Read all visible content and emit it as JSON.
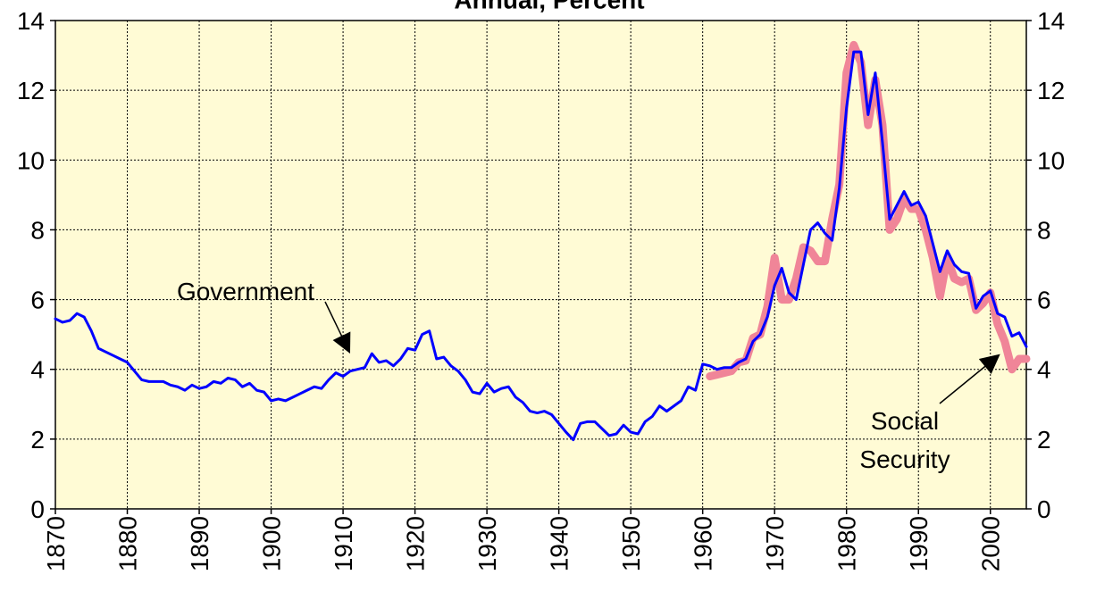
{
  "chart_data": {
    "type": "line",
    "title": "Annual, Percent",
    "xlim": [
      1870,
      2005
    ],
    "xticks": [
      1870,
      1880,
      1890,
      1900,
      1910,
      1920,
      1930,
      1940,
      1950,
      1960,
      1970,
      1980,
      1990,
      2000
    ],
    "ylim": [
      0,
      14
    ],
    "yticks": [
      0,
      2,
      4,
      6,
      8,
      10,
      12,
      14
    ],
    "y2lim": [
      0,
      14
    ],
    "y2ticks": [
      0,
      2,
      4,
      6,
      8,
      10,
      12,
      14
    ],
    "grid": true,
    "background": "#fffbd5",
    "annotations": [
      {
        "text": [
          "Government"
        ]
      },
      {
        "text": [
          "Social",
          "Security"
        ]
      }
    ],
    "series": [
      {
        "name": "Government",
        "color": "#0000ff",
        "x": [
          1870,
          1871,
          1872,
          1873,
          1874,
          1875,
          1876,
          1877,
          1878,
          1879,
          1880,
          1881,
          1882,
          1883,
          1884,
          1885,
          1886,
          1887,
          1888,
          1889,
          1890,
          1891,
          1892,
          1893,
          1894,
          1895,
          1896,
          1897,
          1898,
          1899,
          1900,
          1901,
          1902,
          1903,
          1904,
          1905,
          1906,
          1907,
          1908,
          1909,
          1910,
          1911,
          1912,
          1913,
          1914,
          1915,
          1916,
          1917,
          1918,
          1919,
          1920,
          1921,
          1922,
          1923,
          1924,
          1925,
          1926,
          1927,
          1928,
          1929,
          1930,
          1931,
          1932,
          1933,
          1934,
          1935,
          1936,
          1937,
          1938,
          1939,
          1940,
          1941,
          1942,
          1943,
          1944,
          1945,
          1946,
          1947,
          1948,
          1949,
          1950,
          1951,
          1952,
          1953,
          1954,
          1955,
          1956,
          1957,
          1958,
          1959,
          1960,
          1961,
          1962,
          1963,
          1964,
          1965,
          1966,
          1967,
          1968,
          1969,
          1970,
          1971,
          1972,
          1973,
          1974,
          1975,
          1976,
          1977,
          1978,
          1979,
          1980,
          1981,
          1982,
          1983,
          1984,
          1985,
          1986,
          1987,
          1988,
          1989,
          1990,
          1991,
          1992,
          1993,
          1994,
          1995,
          1996,
          1997,
          1998,
          1999,
          2000,
          2001,
          2002,
          2003,
          2004,
          2005
        ],
        "values": [
          5.45,
          5.35,
          5.4,
          5.6,
          5.5,
          5.1,
          4.6,
          4.5,
          4.4,
          4.3,
          4.2,
          3.95,
          3.7,
          3.65,
          3.65,
          3.65,
          3.55,
          3.5,
          3.4,
          3.55,
          3.45,
          3.5,
          3.65,
          3.6,
          3.75,
          3.7,
          3.5,
          3.6,
          3.4,
          3.35,
          3.1,
          3.15,
          3.1,
          3.2,
          3.3,
          3.4,
          3.5,
          3.45,
          3.7,
          3.9,
          3.8,
          3.95,
          4.0,
          4.05,
          4.45,
          4.2,
          4.25,
          4.1,
          4.3,
          4.6,
          4.55,
          5.0,
          5.1,
          4.3,
          4.35,
          4.1,
          3.95,
          3.7,
          3.35,
          3.3,
          3.6,
          3.35,
          3.45,
          3.5,
          3.2,
          3.05,
          2.8,
          2.75,
          2.8,
          2.7,
          2.45,
          2.2,
          1.98,
          2.45,
          2.5,
          2.5,
          2.3,
          2.1,
          2.15,
          2.4,
          2.2,
          2.15,
          2.5,
          2.65,
          2.95,
          2.8,
          2.95,
          3.1,
          3.5,
          3.4,
          4.15,
          4.1,
          4.0,
          4.05,
          4.05,
          4.2,
          4.3,
          4.8,
          5.0,
          5.5,
          6.4,
          6.9,
          6.2,
          6.0,
          7.0,
          8.0,
          8.2,
          7.9,
          7.7,
          9.2,
          11.5,
          13.1,
          13.1,
          11.3,
          12.5,
          10.5,
          8.3,
          8.7,
          9.1,
          8.7,
          8.8,
          8.4,
          7.6,
          6.8,
          7.4,
          7.0,
          6.8,
          6.75,
          5.75,
          6.1,
          6.25,
          5.6,
          5.5,
          4.95,
          5.05,
          4.65
        ]
      },
      {
        "name": "Social Security",
        "color": "#f08598",
        "x": [
          1961,
          1962,
          1963,
          1964,
          1965,
          1966,
          1967,
          1968,
          1969,
          1970,
          1971,
          1972,
          1973,
          1974,
          1975,
          1976,
          1977,
          1978,
          1979,
          1980,
          1981,
          1982,
          1983,
          1984,
          1985,
          1986,
          1987,
          1988,
          1989,
          1990,
          1991,
          1992,
          1993,
          1994,
          1995,
          1996,
          1997,
          1998,
          1999,
          2000,
          2001,
          2002,
          2003,
          2004,
          2005
        ],
        "values": [
          3.8,
          3.85,
          3.9,
          3.95,
          4.2,
          4.25,
          4.9,
          5.0,
          5.8,
          7.2,
          6.0,
          6.0,
          6.6,
          7.5,
          7.4,
          7.1,
          7.1,
          8.3,
          9.3,
          12.5,
          13.3,
          12.8,
          11.0,
          12.3,
          11.0,
          8.0,
          8.3,
          8.9,
          8.6,
          8.6,
          8.0,
          7.2,
          6.1,
          7.2,
          6.6,
          6.5,
          6.6,
          5.7,
          5.9,
          6.2,
          5.3,
          4.8,
          4.0,
          4.3,
          4.3
        ]
      }
    ]
  }
}
